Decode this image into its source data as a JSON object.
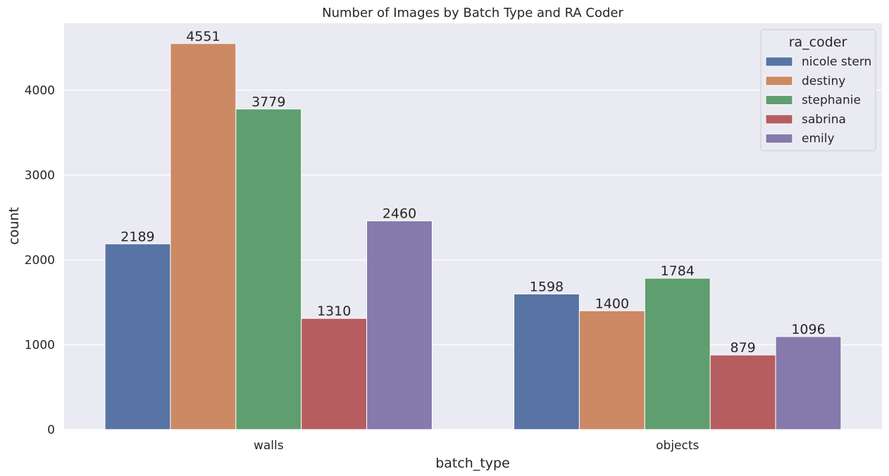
{
  "chart_data": {
    "type": "bar",
    "title": "Number of Images by Batch Type and RA Coder",
    "xlabel": "batch_type",
    "ylabel": "count",
    "categories": [
      "walls",
      "objects"
    ],
    "ylim": [
      0,
      4790
    ],
    "yticks": [
      0,
      1000,
      2000,
      3000,
      4000
    ],
    "grid": true,
    "legend": {
      "title": "ra_coder",
      "placement": "top-right"
    },
    "series": [
      {
        "name": "nicole stern",
        "color": "#5874a4",
        "values": [
          2189,
          1598
        ]
      },
      {
        "name": "destiny",
        "color": "#cc8963",
        "values": [
          4551,
          1400
        ]
      },
      {
        "name": "stephanie",
        "color": "#5f9e6e",
        "values": [
          3779,
          1784
        ]
      },
      {
        "name": "sabrina",
        "color": "#b65d60",
        "values": [
          1310,
          879
        ]
      },
      {
        "name": "emily",
        "color": "#857aab",
        "values": [
          2460,
          1096
        ]
      }
    ]
  }
}
